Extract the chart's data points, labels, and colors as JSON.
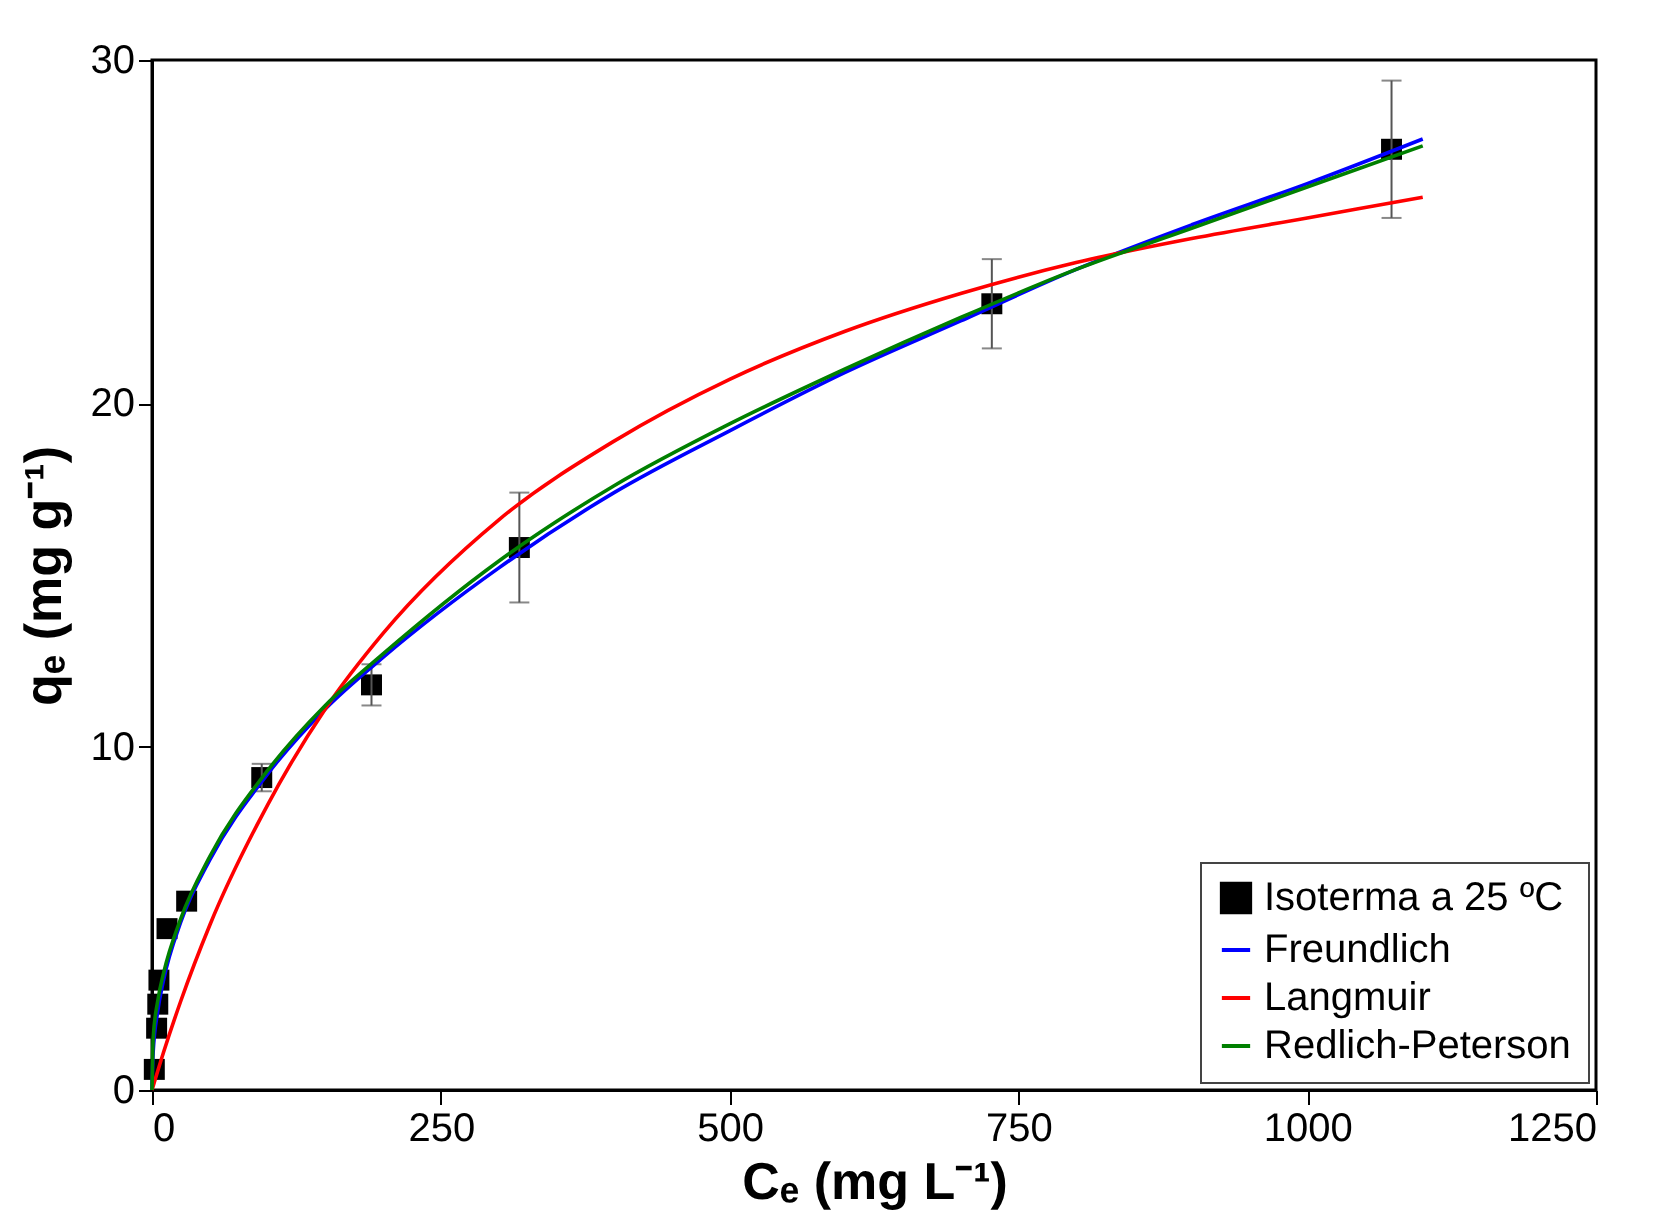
{
  "chart_data": {
    "type": "line",
    "xlabel": "Cₑ (mg L⁻¹)",
    "ylabel": "qₑ (mg g⁻¹)",
    "xlim": [
      0,
      1250
    ],
    "ylim": [
      0,
      30
    ],
    "xticks": [
      0,
      250,
      500,
      750,
      1000,
      1250
    ],
    "yticks": [
      0,
      10,
      20,
      30
    ],
    "grid": false,
    "legend": "bottom right",
    "series": [
      {
        "name": "Isoterma a 25 ºC",
        "type": "scatter",
        "marker": "square",
        "color": "#000000",
        "x": [
          2,
          4,
          5,
          6,
          13,
          30,
          95,
          190,
          318,
          727,
          1073
        ],
        "values": [
          0.6,
          1.8,
          2.5,
          3.2,
          4.7,
          5.5,
          9.1,
          11.8,
          15.8,
          22.9,
          27.4
        ],
        "errors": [
          null,
          null,
          null,
          null,
          null,
          null,
          0.4,
          0.6,
          1.6,
          1.3,
          2.0
        ]
      },
      {
        "name": "Freundlich",
        "color": "#0000ff",
        "x": [
          0,
          1,
          5,
          10,
          25,
          50,
          100,
          150,
          200,
          300,
          400,
          500,
          600,
          700,
          800,
          900,
          1000,
          1100
        ],
        "values": [
          0,
          1.1,
          2.3,
          3.2,
          4.9,
          6.7,
          9.2,
          11.1,
          12.6,
          15.2,
          17.4,
          19.2,
          20.9,
          22.4,
          23.9,
          25.2,
          26.4,
          27.7
        ]
      },
      {
        "name": "Langmuir",
        "color": "#ff0000",
        "x": [
          0,
          10,
          25,
          50,
          100,
          150,
          200,
          300,
          400,
          500,
          600,
          700,
          800,
          900,
          1000,
          1100
        ],
        "values": [
          0,
          1.1,
          2.6,
          4.8,
          8.3,
          11.1,
          13.3,
          16.6,
          18.9,
          20.7,
          22.1,
          23.2,
          24.1,
          24.8,
          25.4,
          26.0
        ]
      },
      {
        "name": "Redlich-Peterson",
        "color": "#008000",
        "x": [
          0,
          1,
          5,
          10,
          25,
          50,
          100,
          150,
          200,
          300,
          400,
          500,
          600,
          700,
          800,
          900,
          1000,
          1100
        ],
        "values": [
          0,
          1.5,
          2.6,
          3.4,
          5.0,
          6.8,
          9.3,
          11.2,
          12.7,
          15.4,
          17.6,
          19.4,
          21.0,
          22.5,
          23.9,
          25.1,
          26.3,
          27.5
        ]
      }
    ]
  }
}
